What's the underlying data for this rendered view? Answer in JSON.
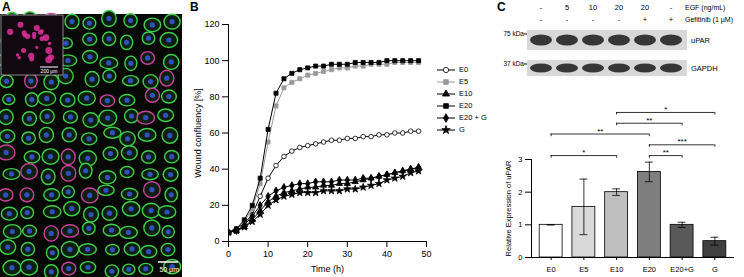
{
  "panel_labels": [
    "A",
    "B",
    "C"
  ],
  "image": {
    "scale_bar": "50 µm",
    "inset_scale_bar": "200 µm"
  },
  "blot": {
    "rows": [
      {
        "label": "EGF (ng/mL)",
        "lanes": [
          "-",
          "5",
          "10",
          "20",
          "20",
          "-"
        ]
      },
      {
        "label": "Gefitinib (1 µM)",
        "lanes": [
          "-",
          "-",
          "-",
          "-",
          "+",
          "+"
        ]
      }
    ],
    "markers": [
      "75 kDa",
      "37 kDa"
    ],
    "bands": [
      "uPAR",
      "GAPDH"
    ]
  },
  "chart_data": [
    {
      "type": "line",
      "x_label": "Time (h)",
      "y_label": "Wound confluency [%]",
      "x": [
        0,
        2,
        4,
        6,
        8,
        10,
        12,
        14,
        16,
        18,
        20,
        22,
        24,
        26,
        28,
        30,
        32,
        34,
        36,
        38,
        40,
        42,
        44,
        46,
        48
      ],
      "xlim": [
        0,
        50
      ],
      "xticks": [
        0,
        10,
        20,
        30,
        40,
        50
      ],
      "ylim": [
        0,
        120
      ],
      "yticks": [
        0,
        20,
        40,
        60,
        80,
        100,
        120
      ],
      "legend": "right",
      "series": [
        {
          "name": "E0",
          "color": "#000000",
          "marker": "circle-open",
          "values": [
            5,
            7,
            10,
            15,
            25,
            35,
            42,
            47,
            50,
            52,
            53,
            54,
            55,
            56,
            56,
            57,
            57,
            58,
            58,
            59,
            59,
            60,
            60,
            61,
            61
          ]
        },
        {
          "name": "E5",
          "color": "#999999",
          "marker": "square",
          "values": [
            5,
            7,
            11,
            18,
            32,
            55,
            75,
            85,
            88,
            90,
            92,
            93,
            94,
            95,
            96,
            96,
            97,
            97,
            98,
            98,
            98,
            99,
            99,
            99,
            99
          ]
        },
        {
          "name": "E10",
          "color": "#000000",
          "marker": "triangle",
          "values": [
            5,
            6,
            8,
            12,
            17,
            22,
            25,
            27,
            28,
            29,
            30,
            30,
            31,
            31,
            32,
            32,
            33,
            34,
            35,
            36,
            37,
            38,
            39,
            40,
            41
          ]
        },
        {
          "name": "E20",
          "color": "#000000",
          "marker": "square",
          "values": [
            5,
            7,
            12,
            20,
            35,
            62,
            82,
            90,
            93,
            95,
            96,
            97,
            97,
            98,
            98,
            98,
            99,
            99,
            99,
            99,
            100,
            100,
            100,
            100,
            100
          ]
        },
        {
          "name": "E20 + G",
          "color": "#000000",
          "marker": "diamond",
          "values": [
            5,
            6,
            9,
            14,
            20,
            25,
            28,
            30,
            31,
            32,
            32,
            33,
            33,
            33,
            34,
            34,
            34,
            35,
            35,
            36,
            37,
            38,
            39,
            40,
            41
          ]
        },
        {
          "name": "G",
          "color": "#000000",
          "marker": "star",
          "values": [
            5,
            6,
            8,
            11,
            15,
            20,
            23,
            25,
            26,
            27,
            27,
            27,
            28,
            28,
            28,
            29,
            29,
            30,
            31,
            32,
            34,
            35,
            36,
            38,
            39
          ]
        }
      ]
    },
    {
      "type": "bar",
      "y_label": "Relative Expression of uPAR",
      "categories": [
        "E0",
        "E5",
        "E10",
        "E20",
        "E20+G",
        "G"
      ],
      "values": [
        1.0,
        1.55,
        2.0,
        2.62,
        1.0,
        0.5
      ],
      "errors": [
        0,
        0.85,
        0.1,
        0.3,
        0.08,
        0.12
      ],
      "colors": [
        "#ffffff",
        "#d9d9d9",
        "#bfbfbf",
        "#7f7f7f",
        "#595959",
        "#404040"
      ],
      "ylim": [
        0,
        3
      ],
      "yticks": [
        0,
        1,
        2,
        3
      ],
      "significance": [
        {
          "from": "E0",
          "to": "E10",
          "label": "*"
        },
        {
          "from": "E20",
          "to": "E20+G",
          "label": "**"
        },
        {
          "from": "E20",
          "to": "G",
          "label": "***"
        },
        {
          "from": "E0",
          "to": "E20",
          "label": "**"
        },
        {
          "from": "E10",
          "to": "E20+G",
          "label": "**"
        },
        {
          "from": "E10",
          "to": "G",
          "label": "*"
        }
      ]
    }
  ]
}
